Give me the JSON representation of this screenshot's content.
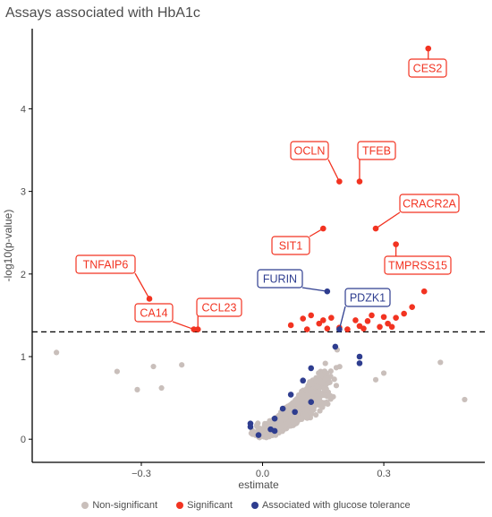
{
  "chart_data": {
    "type": "scatter",
    "title": "Assays associated with HbA1c",
    "xlabel": "estimate",
    "ylabel": "-log10(p-value)",
    "xlim": [
      -0.57,
      0.55
    ],
    "ylim": [
      -0.28,
      4.97
    ],
    "xticks": [
      -0.3,
      0.0,
      0.3
    ],
    "xtick_labels": [
      "−0.3",
      "0.0",
      "0.3"
    ],
    "yticks": [
      0,
      1,
      2,
      3,
      4
    ],
    "ytick_labels": [
      "0",
      "1",
      "2",
      "3",
      "4"
    ],
    "threshold_y": 1.3,
    "grid": false,
    "legend_position": "bottom",
    "colors": {
      "non_significant": "#c9bfbb",
      "significant": "#f23321",
      "glucose": "#2e3d8f",
      "label_red_border": "#f23321",
      "label_blue_border": "#2e3d8f"
    },
    "legend": [
      {
        "label": "Non-significant",
        "color": "#c9bfbb"
      },
      {
        "label": "Significant",
        "color": "#f23321"
      },
      {
        "label": "Associated with glucose tolerance",
        "color": "#2e3d8f"
      }
    ],
    "series": [
      {
        "name": "Significant",
        "points": [
          [
            0.41,
            4.73
          ],
          [
            0.19,
            3.12
          ],
          [
            0.24,
            3.12
          ],
          [
            0.28,
            2.55
          ],
          [
            0.15,
            2.55
          ],
          [
            0.33,
            2.36
          ],
          [
            -0.28,
            1.7
          ],
          [
            -0.17,
            1.33
          ],
          [
            -0.16,
            1.33
          ],
          [
            0.4,
            1.79
          ],
          [
            0.07,
            1.38
          ],
          [
            0.1,
            1.46
          ],
          [
            0.12,
            1.5
          ],
          [
            0.14,
            1.4
          ],
          [
            0.15,
            1.44
          ],
          [
            0.17,
            1.47
          ],
          [
            0.19,
            1.35
          ],
          [
            0.21,
            1.33
          ],
          [
            0.24,
            1.37
          ],
          [
            0.26,
            1.43
          ],
          [
            0.27,
            1.5
          ],
          [
            0.29,
            1.36
          ],
          [
            0.3,
            1.48
          ],
          [
            0.31,
            1.4
          ],
          [
            0.33,
            1.47
          ],
          [
            0.35,
            1.52
          ],
          [
            0.37,
            1.6
          ],
          [
            0.23,
            1.44
          ],
          [
            0.32,
            1.36
          ],
          [
            0.16,
            1.34
          ],
          [
            0.11,
            1.33
          ],
          [
            0.25,
            1.34
          ]
        ]
      },
      {
        "name": "Associated with glucose tolerance",
        "points": [
          [
            0.16,
            1.79
          ],
          [
            0.19,
            1.33
          ],
          [
            0.18,
            1.12
          ],
          [
            0.24,
            1.0
          ],
          [
            0.24,
            0.92
          ],
          [
            0.12,
            0.86
          ],
          [
            0.1,
            0.71
          ],
          [
            0.12,
            0.45
          ],
          [
            0.07,
            0.54
          ],
          [
            0.05,
            0.37
          ],
          [
            0.08,
            0.33
          ],
          [
            0.03,
            0.25
          ],
          [
            0.02,
            0.12
          ],
          [
            0.03,
            0.1
          ],
          [
            -0.03,
            0.19
          ],
          [
            -0.03,
            0.15
          ],
          [
            -0.01,
            0.05
          ]
        ]
      }
    ],
    "labels": [
      {
        "text": "CES2",
        "x": 0.41,
        "y": 4.73,
        "series": "Significant"
      },
      {
        "text": "OCLN",
        "x": 0.19,
        "y": 3.12,
        "series": "Significant"
      },
      {
        "text": "TFEB",
        "x": 0.24,
        "y": 3.12,
        "series": "Significant"
      },
      {
        "text": "CRACR2A",
        "x": 0.28,
        "y": 2.55,
        "series": "Significant"
      },
      {
        "text": "SIT1",
        "x": 0.15,
        "y": 2.55,
        "series": "Significant"
      },
      {
        "text": "TMPRSS15",
        "x": 0.33,
        "y": 2.36,
        "series": "Significant"
      },
      {
        "text": "TNFAIP6",
        "x": -0.28,
        "y": 1.7,
        "series": "Significant"
      },
      {
        "text": "FURIN",
        "x": 0.16,
        "y": 1.79,
        "series": "Associated with glucose tolerance"
      },
      {
        "text": "PDZK1",
        "x": 0.19,
        "y": 1.33,
        "series": "Associated with glucose tolerance"
      },
      {
        "text": "CA14",
        "x": -0.17,
        "y": 1.33,
        "series": "Significant"
      },
      {
        "text": "CCL23",
        "x": -0.16,
        "y": 1.33,
        "series": "Significant"
      }
    ],
    "non_significant_outliers": [
      [
        -0.51,
        1.05
      ],
      [
        -0.36,
        0.82
      ],
      [
        -0.27,
        0.88
      ],
      [
        -0.25,
        0.62
      ],
      [
        0.44,
        0.93
      ],
      [
        0.5,
        0.48
      ],
      [
        0.3,
        0.8
      ],
      [
        0.28,
        0.72
      ],
      [
        -0.31,
        0.6
      ],
      [
        -0.2,
        0.9
      ]
    ]
  }
}
